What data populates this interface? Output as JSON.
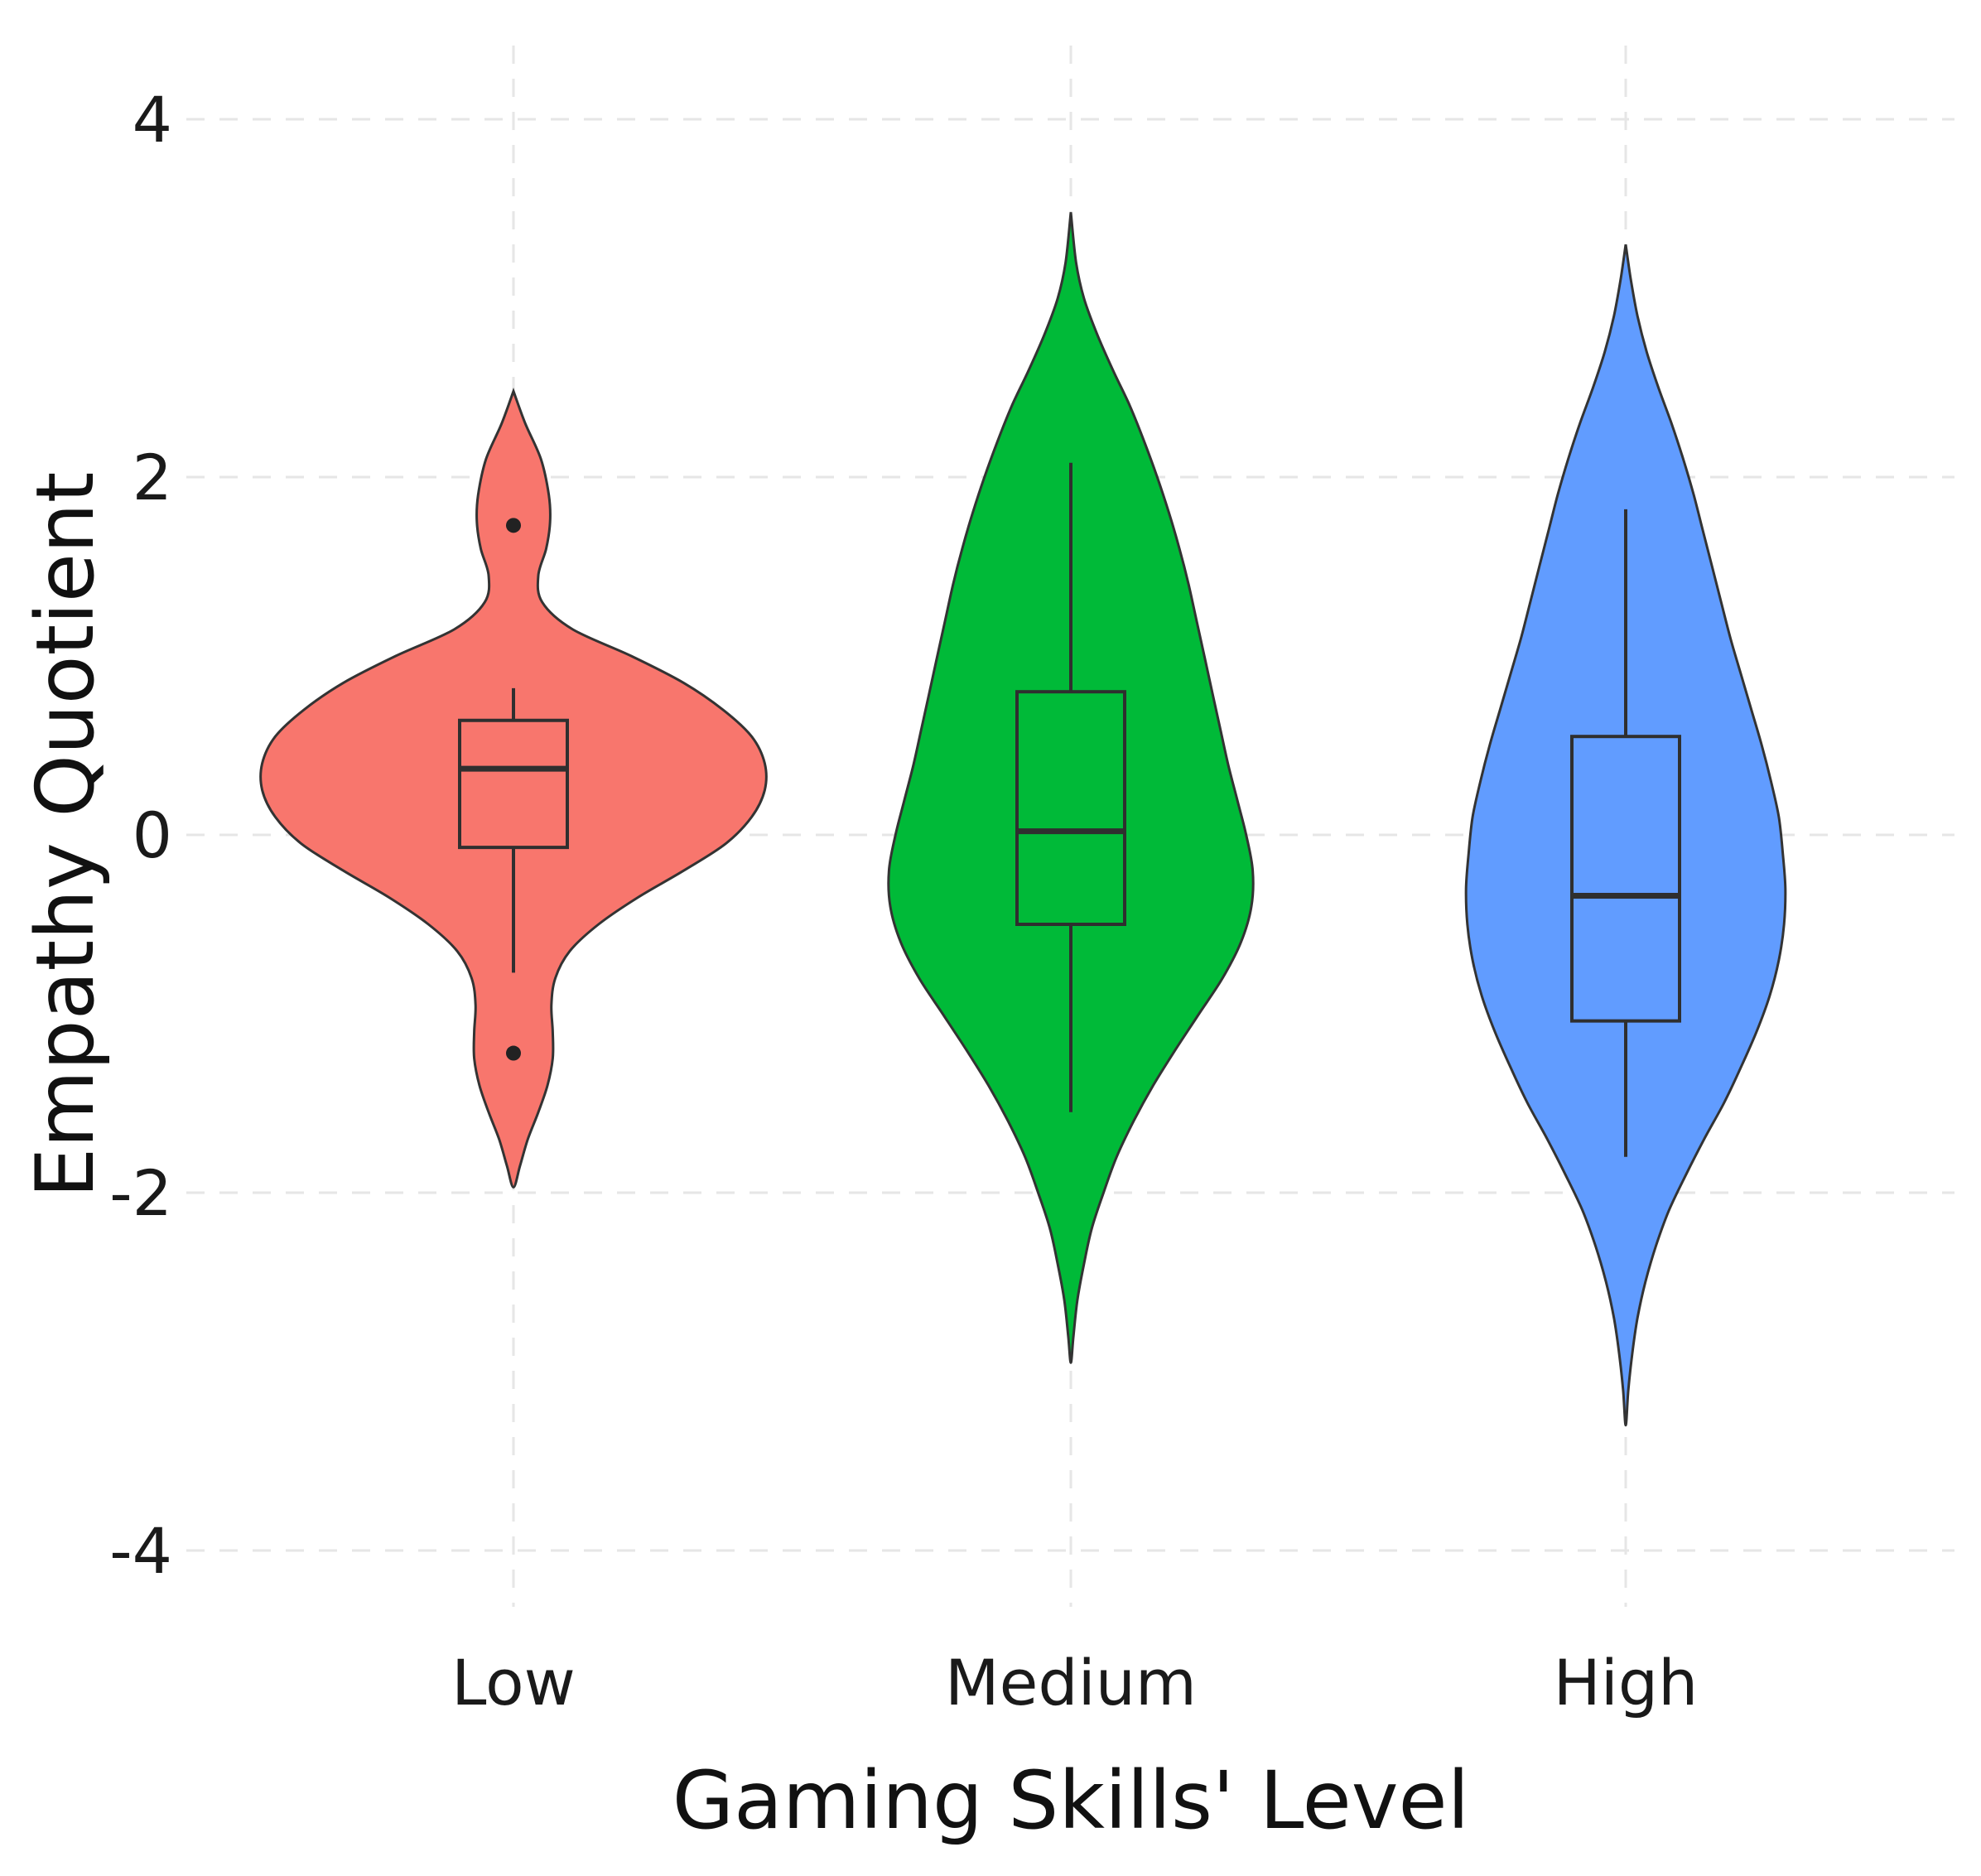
{
  "chart_data": {
    "type": "violin",
    "title": "",
    "xlabel": "Gaming Skills' Level",
    "ylabel": "Empathy Quotient",
    "ylim": [
      -4.6,
      4.4
    ],
    "yticks": [
      -4,
      -2,
      0,
      2,
      4
    ],
    "ytick_labels": [
      "-4",
      "-2",
      "0",
      "2",
      "4"
    ],
    "grid": true,
    "categories": [
      "Low",
      "Medium",
      "High"
    ],
    "series": [
      {
        "category": "Low",
        "color": "#F8766D",
        "box": {
          "q1": -0.07,
          "median": 0.37,
          "q3": 0.64,
          "whisker_low": -0.77,
          "whisker_high": 0.82
        },
        "outliers": [
          1.73,
          -1.22
        ],
        "density": [
          [
            2.48,
            0.0
          ],
          [
            2.3,
            0.09
          ],
          [
            2.1,
            0.21
          ],
          [
            1.9,
            0.27
          ],
          [
            1.75,
            0.28
          ],
          [
            1.6,
            0.25
          ],
          [
            1.45,
            0.19
          ],
          [
            1.3,
            0.22
          ],
          [
            1.15,
            0.45
          ],
          [
            1.0,
            0.9
          ],
          [
            0.85,
            1.3
          ],
          [
            0.7,
            1.6
          ],
          [
            0.55,
            1.82
          ],
          [
            0.4,
            1.92
          ],
          [
            0.25,
            1.92
          ],
          [
            0.1,
            1.82
          ],
          [
            -0.05,
            1.62
          ],
          [
            -0.2,
            1.3
          ],
          [
            -0.35,
            0.95
          ],
          [
            -0.5,
            0.65
          ],
          [
            -0.65,
            0.43
          ],
          [
            -0.8,
            0.32
          ],
          [
            -0.95,
            0.29
          ],
          [
            -1.1,
            0.3
          ],
          [
            -1.25,
            0.3
          ],
          [
            -1.4,
            0.26
          ],
          [
            -1.55,
            0.19
          ],
          [
            -1.7,
            0.11
          ],
          [
            -1.85,
            0.05
          ],
          [
            -1.97,
            0.0
          ]
        ]
      },
      {
        "category": "Medium",
        "color": "#00BA38",
        "box": {
          "q1": -0.5,
          "median": 0.02,
          "q3": 0.8,
          "whisker_low": -1.55,
          "whisker_high": 2.08
        },
        "outliers": [],
        "density": [
          [
            3.48,
            0.0
          ],
          [
            3.2,
            0.04
          ],
          [
            3.0,
            0.1
          ],
          [
            2.8,
            0.2
          ],
          [
            2.6,
            0.32
          ],
          [
            2.4,
            0.45
          ],
          [
            2.2,
            0.56
          ],
          [
            2.0,
            0.66
          ],
          [
            1.8,
            0.75
          ],
          [
            1.6,
            0.83
          ],
          [
            1.4,
            0.9
          ],
          [
            1.2,
            0.96
          ],
          [
            1.0,
            1.02
          ],
          [
            0.8,
            1.08
          ],
          [
            0.6,
            1.14
          ],
          [
            0.4,
            1.2
          ],
          [
            0.2,
            1.27
          ],
          [
            0.0,
            1.34
          ],
          [
            -0.2,
            1.39
          ],
          [
            -0.4,
            1.38
          ],
          [
            -0.6,
            1.3
          ],
          [
            -0.8,
            1.16
          ],
          [
            -1.0,
            0.98
          ],
          [
            -1.2,
            0.8
          ],
          [
            -1.4,
            0.63
          ],
          [
            -1.6,
            0.48
          ],
          [
            -1.8,
            0.35
          ],
          [
            -2.0,
            0.25
          ],
          [
            -2.2,
            0.16
          ],
          [
            -2.4,
            0.1
          ],
          [
            -2.6,
            0.05
          ],
          [
            -2.8,
            0.02
          ],
          [
            -2.95,
            0.0
          ]
        ]
      },
      {
        "category": "High",
        "color": "#619CFF",
        "box": {
          "q1": -1.04,
          "median": -0.34,
          "q3": 0.55,
          "whisker_low": -1.8,
          "whisker_high": 1.82
        },
        "outliers": [],
        "density": [
          [
            3.3,
            0.0
          ],
          [
            3.1,
            0.04
          ],
          [
            2.9,
            0.09
          ],
          [
            2.7,
            0.16
          ],
          [
            2.5,
            0.25
          ],
          [
            2.3,
            0.35
          ],
          [
            2.1,
            0.44
          ],
          [
            1.9,
            0.52
          ],
          [
            1.7,
            0.59
          ],
          [
            1.5,
            0.66
          ],
          [
            1.3,
            0.73
          ],
          [
            1.1,
            0.8
          ],
          [
            0.9,
            0.88
          ],
          [
            0.7,
            0.96
          ],
          [
            0.5,
            1.04
          ],
          [
            0.3,
            1.11
          ],
          [
            0.1,
            1.17
          ],
          [
            -0.1,
            1.2
          ],
          [
            -0.3,
            1.22
          ],
          [
            -0.5,
            1.21
          ],
          [
            -0.7,
            1.17
          ],
          [
            -0.9,
            1.1
          ],
          [
            -1.1,
            1.0
          ],
          [
            -1.3,
            0.88
          ],
          [
            -1.5,
            0.75
          ],
          [
            -1.7,
            0.6
          ],
          [
            -1.9,
            0.46
          ],
          [
            -2.1,
            0.33
          ],
          [
            -2.3,
            0.23
          ],
          [
            -2.5,
            0.15
          ],
          [
            -2.7,
            0.09
          ],
          [
            -2.9,
            0.05
          ],
          [
            -3.1,
            0.02
          ],
          [
            -3.3,
            0.0
          ]
        ]
      }
    ]
  }
}
